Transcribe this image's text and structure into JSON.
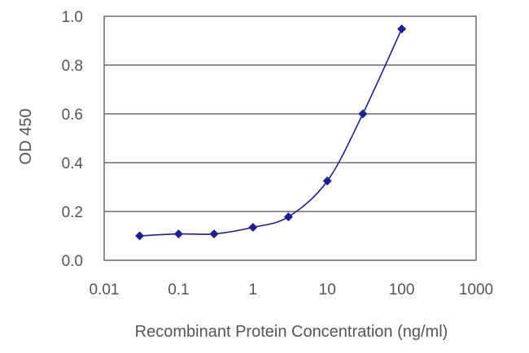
{
  "chart_data": {
    "type": "line",
    "xscale": "log",
    "x": [
      0.03,
      0.1,
      0.3,
      1,
      3,
      10,
      30,
      100
    ],
    "series": [
      {
        "values": [
          0.1,
          0.108,
          0.108,
          0.135,
          0.178,
          0.325,
          0.6,
          0.948
        ]
      }
    ],
    "xlabel": "Recombinant Protein Concentration (ng/ml)",
    "ylabel": "OD 450",
    "xlim": [
      0.01,
      1000
    ],
    "ylim": [
      0,
      1
    ],
    "xticks": [
      0.01,
      0.1,
      1,
      10,
      100,
      1000
    ],
    "xtick_labels": [
      "0.01",
      "0.1",
      "1",
      "10",
      "100",
      "1000"
    ],
    "yticks": [
      0,
      0.2,
      0.4,
      0.6,
      0.8,
      1
    ],
    "ytick_labels": [
      "0.0",
      "0.2",
      "0.4",
      "0.6",
      "0.8",
      "1.0"
    ],
    "grid": "horizontal",
    "legend": "none",
    "colors": {
      "series": "#1f1f8f",
      "grid": "#6b6b6b",
      "frame": "#6b6b6b"
    }
  }
}
